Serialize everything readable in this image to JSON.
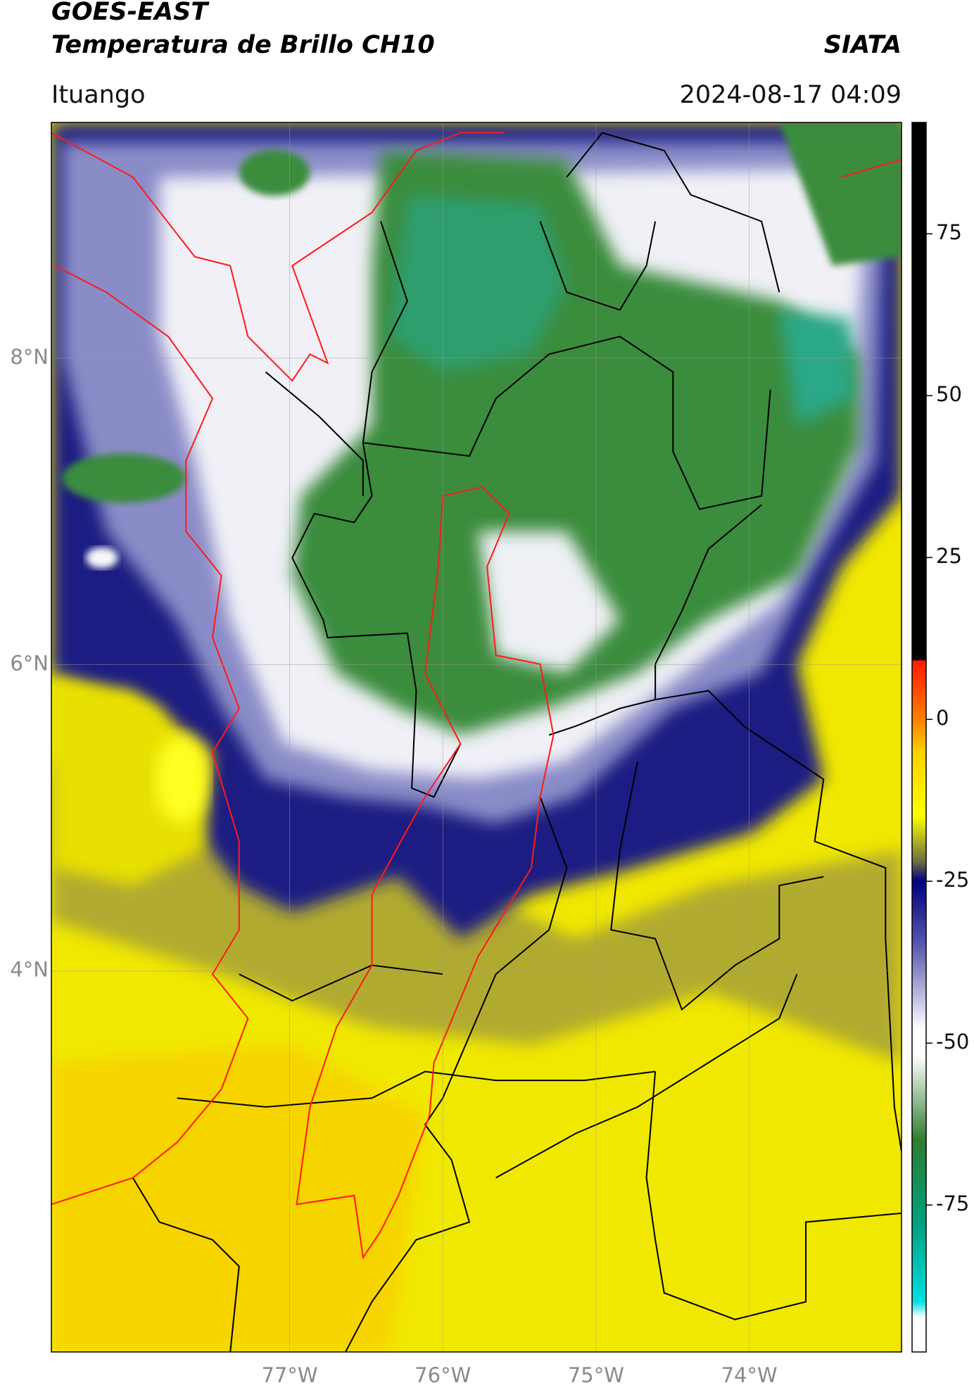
{
  "chart_data": {
    "type": "map",
    "title": "GOES-EAST",
    "subtitle": "Temperatura de Brillo CH10",
    "source": "SIATA",
    "location": "Ituango",
    "datetime": "2024-08-17 04:09",
    "xlim": [
      -78.555,
      -73.006
    ],
    "ylim": [
      1.514,
      9.538
    ],
    "xticks": [
      {
        "value": -77,
        "label": "77°W"
      },
      {
        "value": -76,
        "label": "76°W"
      },
      {
        "value": -75,
        "label": "75°W"
      },
      {
        "value": -74,
        "label": "74°W"
      }
    ],
    "yticks": [
      {
        "value": 4,
        "label": "4°N"
      },
      {
        "value": 6,
        "label": "6°N"
      },
      {
        "value": 8,
        "label": "8°N"
      }
    ],
    "grid": true,
    "colorbar": {
      "lim": [
        -97.7,
        92.2
      ],
      "ticks": [
        -75,
        -50,
        -25,
        0,
        25,
        50,
        75
      ]
    }
  }
}
